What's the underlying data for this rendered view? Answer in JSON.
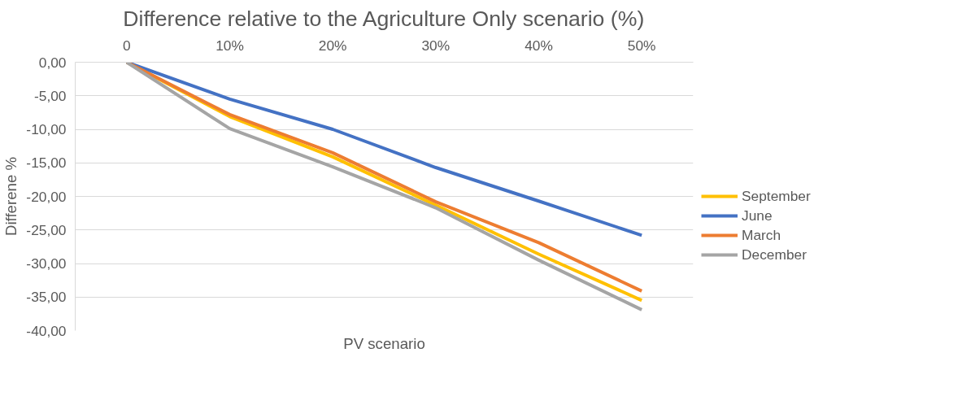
{
  "chart_data": {
    "type": "line",
    "title": "Difference relative to the Agriculture Only scenario (%)",
    "xlabel": "PV scenario",
    "ylabel": "Differene %",
    "categories": [
      "0",
      "10%",
      "20%",
      "30%",
      "40%",
      "50%"
    ],
    "series": [
      {
        "name": "September",
        "color": "#ffc000",
        "values": [
          0,
          -8.1,
          -14.1,
          -21.3,
          -28.6,
          -35.5
        ]
      },
      {
        "name": "June",
        "color": "#4472c4",
        "values": [
          0,
          -5.5,
          -10.0,
          -15.7,
          -20.7,
          -25.8
        ]
      },
      {
        "name": "March",
        "color": "#ed7d31",
        "values": [
          0,
          -7.8,
          -13.5,
          -20.8,
          -26.9,
          -34.1
        ]
      },
      {
        "name": "December",
        "color": "#a5a5a5",
        "values": [
          0,
          -9.9,
          -15.6,
          -21.7,
          -29.5,
          -36.9
        ]
      }
    ],
    "ylim": [
      -40,
      0
    ],
    "yticks": [
      {
        "value": 0,
        "label": "0,00"
      },
      {
        "value": -5,
        "label": "-5,00"
      },
      {
        "value": -10,
        "label": "-10,00"
      },
      {
        "value": -15,
        "label": "-15,00"
      },
      {
        "value": -20,
        "label": "-20,00"
      },
      {
        "value": -25,
        "label": "-25,00"
      },
      {
        "value": -30,
        "label": "-30,00"
      },
      {
        "value": -35,
        "label": "-35,00"
      },
      {
        "value": -40,
        "label": "-40,00"
      }
    ],
    "grid": "y",
    "legend": "right",
    "marker": "none",
    "line_style": "solid"
  }
}
